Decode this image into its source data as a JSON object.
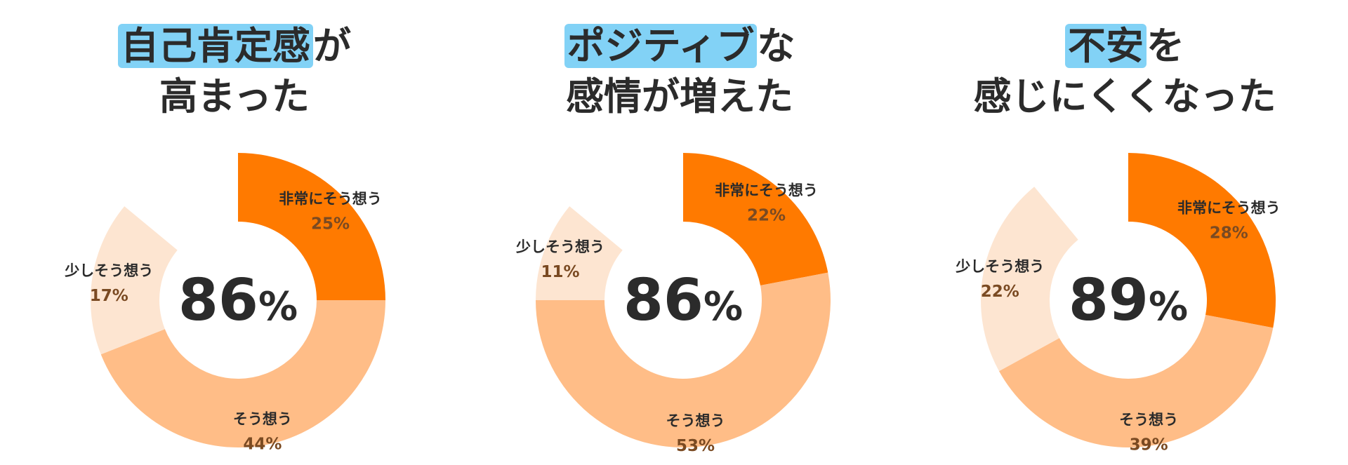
{
  "colors": {
    "very_much": "#ff7a00",
    "agree": "#ffbd87",
    "somewhat": "#fde5d1",
    "highlight": "#82d2f6",
    "value_text": "#7a4a22",
    "text": "#2b2b2b"
  },
  "chart_data": [
    {
      "type": "pie",
      "title_line1_highlight": "自己肯定感",
      "title_line1_rest": "が",
      "title_line2": "高まった",
      "center": "86",
      "center_unit": "%",
      "segments": [
        {
          "label": "非常にそう想う",
          "value": 25,
          "value_text": "25%"
        },
        {
          "label": "そう想う",
          "value": 44,
          "value_text": "44%"
        },
        {
          "label": "少しそう想う",
          "value": 17,
          "value_text": "17%"
        }
      ]
    },
    {
      "type": "pie",
      "title_line1_highlight": "ポジティブ",
      "title_line1_rest": "な",
      "title_line2": "感情が増えた",
      "center": "86",
      "center_unit": "%",
      "segments": [
        {
          "label": "非常にそう想う",
          "value": 22,
          "value_text": "22%"
        },
        {
          "label": "そう想う",
          "value": 53,
          "value_text": "53%"
        },
        {
          "label": "少しそう想う",
          "value": 11,
          "value_text": "11%"
        }
      ]
    },
    {
      "type": "pie",
      "title_line1_highlight": "不安",
      "title_line1_rest": "を",
      "title_line2": "感じにくくなった",
      "center": "89",
      "center_unit": "%",
      "segments": [
        {
          "label": "非常にそう想う",
          "value": 28,
          "value_text": "28%"
        },
        {
          "label": "そう想う",
          "value": 39,
          "value_text": "39%"
        },
        {
          "label": "少しそう想う",
          "value": 22,
          "value_text": "22%"
        }
      ]
    }
  ]
}
